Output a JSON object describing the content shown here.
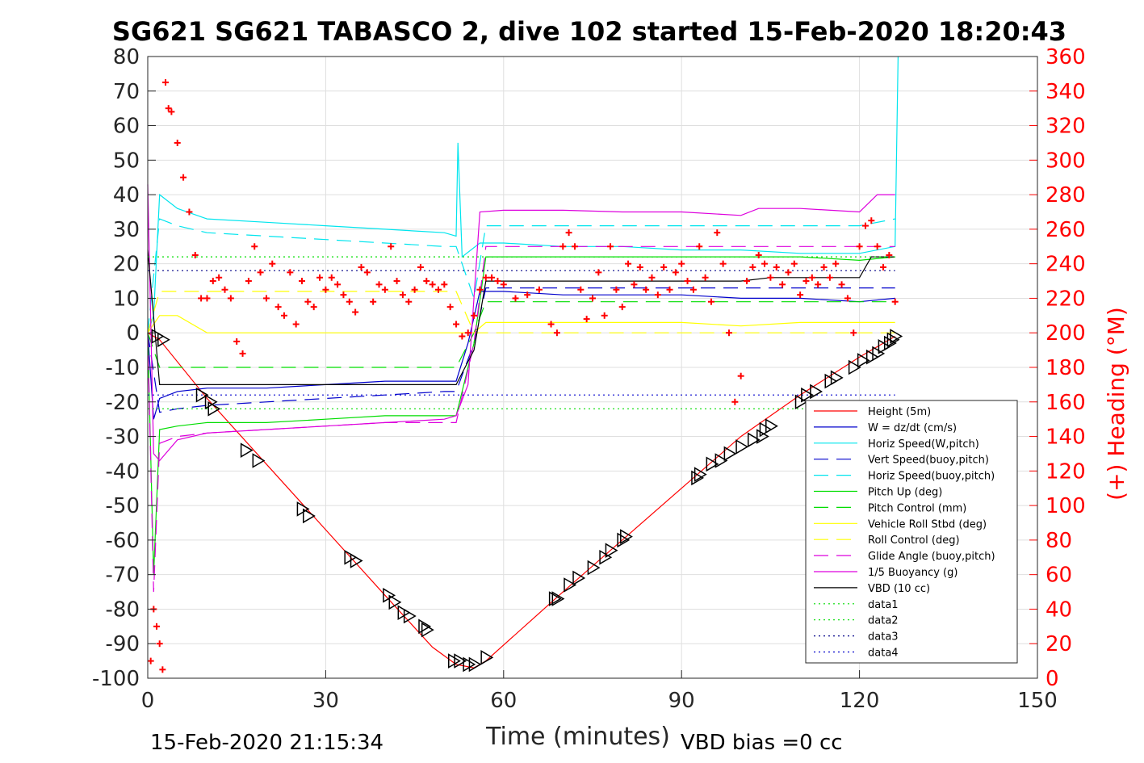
{
  "chart_data": {
    "type": "line",
    "title": "SG621 SG621 TABASCO 2, dive 102 started 15-Feb-2020 18:20:43",
    "xlabel": "Time (minutes)",
    "ylabel": "",
    "y2label": "(+) Heading (°M)",
    "xlim": [
      0,
      150
    ],
    "ylim": [
      -100,
      80
    ],
    "y2lim": [
      0,
      360
    ],
    "xticks": [
      "0",
      "30",
      "60",
      "90",
      "120",
      "150"
    ],
    "yticks": [
      "80",
      "70",
      "60",
      "50",
      "40",
      "30",
      "20",
      "10",
      "0",
      "-10",
      "-20",
      "-30",
      "-40",
      "-50",
      "-60",
      "-70",
      "-80",
      "-90",
      "-100"
    ],
    "y2ticks": [
      "360",
      "340",
      "320",
      "300",
      "280",
      "260",
      "240",
      "220",
      "200",
      "180",
      "160",
      "140",
      "120",
      "100",
      "80",
      "60",
      "40",
      "20",
      "0"
    ],
    "grid": true,
    "legend_position": "lower-right",
    "footer_left": "15-Feb-2020 21:15:34",
    "footer_right": "VBD bias =0 cc",
    "series": [
      {
        "name": "Height (5m)",
        "color": "#ff0000",
        "style": "solid",
        "x": [
          0,
          2,
          10,
          20,
          30,
          40,
          48,
          52,
          55,
          57,
          70,
          80,
          90,
          100,
          110,
          120,
          126
        ],
        "y": [
          0,
          -2,
          -19,
          -38,
          -57,
          -76,
          -91,
          -96,
          -97,
          -95,
          -75,
          -60,
          -45,
          -30,
          -18,
          -7,
          -1
        ]
      },
      {
        "name": "W = dz/dt (cm/s)",
        "color": "#0000cc",
        "style": "solid",
        "x": [
          0,
          1,
          2,
          5,
          10,
          20,
          30,
          40,
          50,
          52,
          54,
          56,
          60,
          70,
          80,
          90,
          100,
          110,
          120,
          126
        ],
        "y": [
          0,
          -25,
          -19,
          -17,
          -16,
          -16,
          -15,
          -14,
          -14,
          -14,
          -3,
          12,
          12,
          11,
          11,
          11,
          10,
          10,
          9,
          10
        ]
      },
      {
        "name": "Horiz Speed(W,pitch)",
        "color": "#00e5ee",
        "style": "solid",
        "x": [
          0,
          1,
          2,
          5,
          10,
          20,
          30,
          40,
          50,
          52,
          52.3,
          53,
          56,
          60,
          70,
          80,
          90,
          100,
          110,
          120,
          126,
          126.5
        ],
        "y": [
          0,
          5,
          40,
          36,
          33,
          32,
          31,
          30,
          29,
          28,
          55,
          22,
          26,
          26,
          25,
          25,
          24,
          24,
          23,
          23,
          25,
          80
        ]
      },
      {
        "name": "Vert Speed(buoy,pitch)",
        "color": "#0000cc",
        "style": "dash",
        "x": [
          0,
          2,
          5,
          10,
          20,
          30,
          40,
          50,
          52,
          55,
          57,
          60,
          70,
          80,
          90,
          100,
          110,
          120,
          126
        ],
        "y": [
          0,
          -23,
          -22,
          -21,
          -20,
          -19,
          -18,
          -17,
          -17,
          -3,
          13,
          13,
          13,
          13,
          13,
          13,
          13,
          13,
          13
        ]
      },
      {
        "name": "Horiz Speed(buoy,pitch)",
        "color": "#00e5ee",
        "style": "dash",
        "x": [
          0,
          2,
          5,
          10,
          20,
          30,
          40,
          50,
          52,
          55,
          57,
          60,
          70,
          80,
          90,
          100,
          110,
          120,
          126
        ],
        "y": [
          0,
          33,
          31,
          29,
          28,
          27,
          26,
          25,
          25,
          10,
          31,
          31,
          31,
          31,
          31,
          31,
          31,
          31,
          33
        ]
      },
      {
        "name": "Pitch Up (deg)",
        "color": "#00dd00",
        "style": "solid",
        "x": [
          0,
          1,
          2,
          5,
          10,
          20,
          30,
          40,
          50,
          52,
          55,
          57,
          60,
          70,
          80,
          90,
          100,
          110,
          120,
          126
        ],
        "y": [
          0,
          -70,
          -28,
          -27,
          -26,
          -26,
          -25,
          -24,
          -24,
          -24,
          -3,
          22,
          22,
          22,
          22,
          22,
          22,
          22,
          21,
          22
        ]
      },
      {
        "name": "Pitch Control (mm)",
        "color": "#00dd00",
        "style": "dash",
        "x": [
          0,
          2,
          10,
          20,
          30,
          40,
          50,
          52,
          55,
          57,
          60,
          70,
          80,
          90,
          100,
          110,
          120,
          126
        ],
        "y": [
          0,
          -10,
          -10,
          -10,
          -10,
          -10,
          -10,
          -10,
          0,
          9,
          9,
          9,
          9,
          9,
          9,
          9,
          9,
          9
        ]
      },
      {
        "name": "Vehicle Roll Stbd (deg)",
        "color": "#ffff00",
        "style": "solid",
        "x": [
          0,
          2,
          5,
          10,
          20,
          30,
          40,
          50,
          52,
          55,
          57,
          60,
          70,
          80,
          90,
          100,
          110,
          120,
          126
        ],
        "y": [
          0,
          5,
          5,
          0,
          0,
          0,
          0,
          0,
          0,
          0,
          3,
          3,
          3,
          3,
          3,
          2,
          3,
          3,
          3
        ]
      },
      {
        "name": "Roll Control (deg)",
        "color": "#ffff00",
        "style": "dash",
        "x": [
          0,
          2,
          10,
          20,
          30,
          40,
          50,
          52,
          55,
          57,
          60,
          70,
          80,
          90,
          100,
          110,
          120,
          126
        ],
        "y": [
          0,
          12,
          12,
          12,
          12,
          12,
          12,
          12,
          0,
          0,
          0,
          0,
          0,
          0,
          0,
          0,
          0,
          0
        ]
      },
      {
        "name": "Glide Angle (buoy,pitch)",
        "color": "#dd00dd",
        "style": "dash",
        "x": [
          0,
          1,
          2,
          5,
          10,
          20,
          30,
          40,
          50,
          52,
          55,
          57,
          60,
          70,
          80,
          90,
          100,
          110,
          120,
          126
        ],
        "y": [
          0,
          -75,
          -32,
          -30,
          -29,
          -28,
          -27,
          -26,
          -26,
          -26,
          -3,
          25,
          25,
          25,
          25,
          25,
          25,
          25,
          25,
          25
        ]
      },
      {
        "name": "1/5 Buoyancy (g)",
        "color": "#dd00dd",
        "style": "solid",
        "x": [
          0,
          1,
          2,
          5,
          10,
          20,
          30,
          40,
          50,
          52,
          54,
          56,
          60,
          70,
          80,
          90,
          100,
          103,
          110,
          120,
          123,
          126
        ],
        "y": [
          43,
          -35,
          -37,
          -31,
          -29,
          -28,
          -27,
          -26,
          -25,
          -24,
          -15,
          35,
          35.5,
          35.5,
          35,
          35,
          34,
          36,
          36,
          35,
          40,
          40
        ]
      },
      {
        "name": "VBD (10 cc)",
        "color": "#000000",
        "style": "solid",
        "x": [
          0,
          2,
          10,
          20,
          30,
          40,
          50,
          52,
          55,
          57,
          60,
          70,
          80,
          90,
          100,
          105,
          110,
          120,
          122,
          126
        ],
        "y": [
          24,
          -15,
          -15,
          -15,
          -15,
          -15,
          -15,
          -15,
          -5,
          15,
          15,
          15,
          15,
          15,
          15,
          16,
          16,
          16,
          22,
          22
        ]
      },
      {
        "name": "data1",
        "color": "#00dd00",
        "style": "dot",
        "x": [
          0,
          126
        ],
        "y": [
          22,
          22
        ]
      },
      {
        "name": "data2",
        "color": "#00dd00",
        "style": "dot",
        "x": [
          0,
          126
        ],
        "y": [
          -22,
          -22
        ]
      },
      {
        "name": "data3",
        "color": "#000088",
        "style": "dot",
        "x": [
          0,
          126
        ],
        "y": [
          18,
          18
        ]
      },
      {
        "name": "data4",
        "color": "#0000cc",
        "style": "dot",
        "x": [
          0,
          126
        ],
        "y": [
          -18,
          -18
        ]
      }
    ],
    "heading_series": {
      "axis": "right",
      "color": "#ff0000",
      "marker": "+",
      "x": [
        0.5,
        1,
        1.5,
        2,
        2.5,
        3,
        3.5,
        4,
        5,
        6,
        7,
        8,
        9,
        10,
        11,
        12,
        13,
        14,
        15,
        16,
        17,
        18,
        19,
        20,
        21,
        22,
        23,
        24,
        25,
        26,
        27,
        28,
        29,
        30,
        31,
        32,
        33,
        34,
        35,
        36,
        37,
        38,
        39,
        40,
        41,
        42,
        43,
        44,
        45,
        46,
        47,
        48,
        49,
        50,
        51,
        52,
        53,
        54,
        55,
        56,
        57,
        58,
        59,
        60,
        62,
        64,
        66,
        68,
        69,
        70,
        71,
        72,
        73,
        74,
        75,
        76,
        77,
        78,
        79,
        80,
        81,
        82,
        83,
        84,
        85,
        86,
        87,
        88,
        89,
        90,
        91,
        92,
        93,
        94,
        95,
        96,
        97,
        98,
        99,
        100,
        101,
        102,
        103,
        104,
        105,
        106,
        107,
        108,
        109,
        110,
        111,
        112,
        113,
        114,
        115,
        116,
        117,
        118,
        119,
        120,
        121,
        122,
        123,
        124,
        125,
        126
      ],
      "y": [
        10,
        40,
        30,
        20,
        5,
        345,
        330,
        328,
        310,
        290,
        270,
        245,
        220,
        220,
        230,
        232,
        225,
        220,
        195,
        188,
        230,
        250,
        235,
        220,
        240,
        215,
        210,
        235,
        205,
        230,
        218,
        215,
        232,
        225,
        232,
        228,
        222,
        218,
        212,
        238,
        235,
        218,
        228,
        225,
        250,
        230,
        222,
        218,
        225,
        238,
        230,
        228,
        225,
        228,
        215,
        205,
        198,
        200,
        210,
        225,
        232,
        232,
        230,
        228,
        220,
        222,
        225,
        205,
        200,
        250,
        258,
        250,
        225,
        208,
        220,
        235,
        210,
        250,
        225,
        215,
        240,
        228,
        238,
        225,
        232,
        222,
        238,
        225,
        235,
        240,
        230,
        225,
        250,
        232,
        218,
        258,
        240,
        200,
        160,
        175,
        230,
        238,
        245,
        240,
        232,
        238,
        228,
        235,
        240,
        222,
        230,
        232,
        228,
        238,
        232,
        240,
        228,
        220,
        200,
        250,
        262,
        265,
        250,
        238,
        245,
        218
      ]
    },
    "markers_series": {
      "marker": "triangle",
      "color": "#000000",
      "x": [
        1.5,
        2.5,
        9,
        10.5,
        11,
        16.5,
        18.5,
        26,
        27,
        34,
        35,
        40.5,
        41.5,
        43,
        44,
        46.5,
        47,
        51.5,
        52.5,
        54,
        55,
        57,
        68.5,
        69,
        71,
        72.5,
        75,
        77,
        78,
        80,
        80.5,
        92.5,
        93,
        95,
        96.5,
        98,
        100,
        102,
        103.5,
        104,
        105,
        110,
        111,
        112.5,
        115,
        116,
        119,
        120.5,
        122,
        123,
        124,
        125,
        125.5,
        126
      ],
      "y": [
        -1,
        -2,
        -18,
        -20,
        -22,
        -34,
        -37,
        -51,
        -53,
        -65,
        -66,
        -76,
        -78,
        -81,
        -82,
        -85,
        -86,
        -95,
        -95,
        -96,
        -96,
        -94,
        -77,
        -77,
        -73,
        -71,
        -68,
        -65,
        -63,
        -60,
        -59,
        -42,
        -41,
        -38,
        -37,
        -35,
        -33,
        -31,
        -30,
        -28,
        -27,
        -20,
        -18,
        -17,
        -14,
        -13,
        -10,
        -8,
        -7,
        -6,
        -4,
        -3,
        -2,
        -1
      ]
    }
  }
}
